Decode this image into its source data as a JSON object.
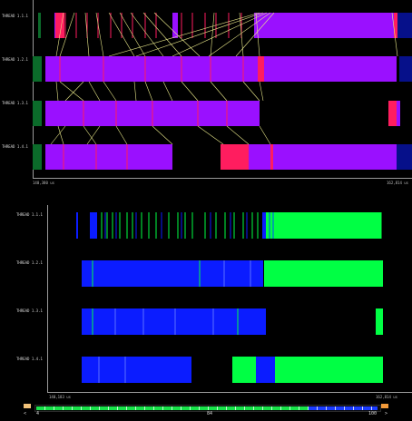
{
  "colors": {
    "purple": "#9a10ff",
    "red": "#ff1d5f",
    "green": "#00ff44",
    "blue": "#0b1cff",
    "darkgreen": "#0b6b2a",
    "navy": "#06108a",
    "line": "#e9e88a",
    "axis": "#9a9a9a"
  },
  "top": {
    "threads": [
      "THREAD 1.1.1",
      "THREAD 1.2.1",
      "THREAD 1.3.1",
      "THREAD 1.4.1"
    ],
    "axis_start": "140,380 us",
    "axis_end": "162,814 us"
  },
  "bottom": {
    "threads": [
      "THREAD 1.1.1",
      "THREAD 1.2.1",
      "THREAD 1.3.1",
      "THREAD 1.4.1"
    ],
    "axis_start": "140,183 us",
    "axis_end": "162,814 us"
  },
  "scrollbar": {
    "left_arrow": "<",
    "right_arrow": ">",
    "min_label": "4",
    "mid_label": "84",
    "max_label": "100"
  }
}
